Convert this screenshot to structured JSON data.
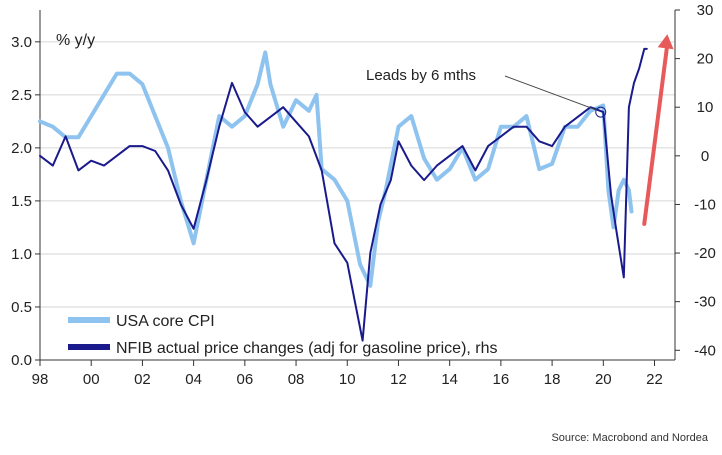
{
  "chart_data": {
    "type": "line",
    "title": "",
    "y_left_label": "% y/y",
    "y_left_ticks": [
      "0.0",
      "0.5",
      "1.0",
      "1.5",
      "2.0",
      "2.5",
      "3.0"
    ],
    "y_left_range": [
      0,
      3.3
    ],
    "y_right_ticks": [
      "-40",
      "-30",
      "-20",
      "-10",
      "0",
      "10",
      "20",
      "30"
    ],
    "y_right_range": [
      -42,
      30
    ],
    "x_ticks": [
      "98",
      "00",
      "02",
      "04",
      "06",
      "08",
      "10",
      "12",
      "14",
      "16",
      "18",
      "20",
      "22"
    ],
    "x_range": [
      1998,
      2022.8
    ],
    "grid": true,
    "legend_position": "bottom-left",
    "series": [
      {
        "name": "USA core CPI",
        "axis": "left",
        "color": "#8ec3ef",
        "x": [
          1998.0,
          1998.5,
          1999.0,
          1999.5,
          2000.0,
          2000.5,
          2001.0,
          2001.5,
          2002.0,
          2002.5,
          2003.0,
          2003.5,
          2004.0,
          2004.5,
          2005.0,
          2005.5,
          2006.0,
          2006.5,
          2006.8,
          2007.0,
          2007.5,
          2008.0,
          2008.5,
          2008.8,
          2009.0,
          2009.5,
          2010.0,
          2010.5,
          2010.9,
          2011.2,
          2011.5,
          2012.0,
          2012.5,
          2013.0,
          2013.5,
          2014.0,
          2014.5,
          2015.0,
          2015.5,
          2016.0,
          2016.5,
          2017.0,
          2017.5,
          2018.0,
          2018.5,
          2019.0,
          2019.5,
          2020.0,
          2020.2,
          2020.4,
          2020.6,
          2020.8,
          2021.0,
          2021.1
        ],
        "values": [
          2.25,
          2.2,
          2.1,
          2.1,
          2.3,
          2.5,
          2.7,
          2.7,
          2.6,
          2.3,
          2.0,
          1.5,
          1.1,
          1.7,
          2.3,
          2.2,
          2.3,
          2.6,
          2.9,
          2.6,
          2.2,
          2.45,
          2.35,
          2.5,
          1.8,
          1.7,
          1.5,
          0.9,
          0.7,
          1.3,
          1.6,
          2.2,
          2.3,
          1.9,
          1.7,
          1.8,
          2.0,
          1.7,
          1.8,
          2.2,
          2.2,
          2.3,
          1.8,
          1.85,
          2.2,
          2.2,
          2.35,
          2.4,
          1.6,
          1.25,
          1.6,
          1.7,
          1.6,
          1.4
        ]
      },
      {
        "name": "NFIB actual price changes (adj for gasoline price), rhs",
        "axis": "right",
        "color": "#1a1a8c",
        "x": [
          1998.0,
          1998.5,
          1999.0,
          1999.5,
          2000.0,
          2000.5,
          2001.0,
          2001.5,
          2002.0,
          2002.5,
          2003.0,
          2003.5,
          2004.0,
          2004.5,
          2005.0,
          2005.5,
          2006.0,
          2006.5,
          2007.0,
          2007.5,
          2008.0,
          2008.5,
          2009.0,
          2009.5,
          2010.0,
          2010.3,
          2010.6,
          2010.9,
          2011.3,
          2011.7,
          2012.0,
          2012.5,
          2013.0,
          2013.5,
          2014.0,
          2014.5,
          2015.0,
          2015.5,
          2016.0,
          2016.5,
          2017.0,
          2017.5,
          2018.0,
          2018.5,
          2019.0,
          2019.5,
          2020.0,
          2020.3,
          2020.5,
          2020.8,
          2021.0,
          2021.2,
          2021.4,
          2021.6,
          2021.7
        ],
        "values": [
          0,
          -2,
          4,
          -3,
          -1,
          -2,
          0,
          2,
          2,
          1,
          -3,
          -10,
          -15,
          -5,
          6,
          15,
          9,
          6,
          8,
          10,
          7,
          4,
          -3,
          -18,
          -22,
          -30,
          -38,
          -20,
          -10,
          -5,
          3,
          -2,
          -5,
          -2,
          0,
          2,
          -3,
          2,
          4,
          6,
          6,
          3,
          2,
          6,
          8,
          10,
          9,
          -8,
          -15,
          -25,
          10,
          15,
          18,
          22,
          22
        ]
      }
    ],
    "legend": [
      "USA core CPI",
      "NFIB actual price changes (adj for gasoline price), rhs"
    ],
    "annotations": [
      {
        "text": "Leads by 6 mths",
        "x": 2019.9,
        "y_right": 9
      }
    ],
    "arrow": {
      "color": "#e8595a",
      "from": {
        "x": 2021.6,
        "y_right": -14
      },
      "to": {
        "x": 2022.5,
        "y_right": 25
      }
    },
    "source": "Source: Macrobond and Nordea"
  }
}
